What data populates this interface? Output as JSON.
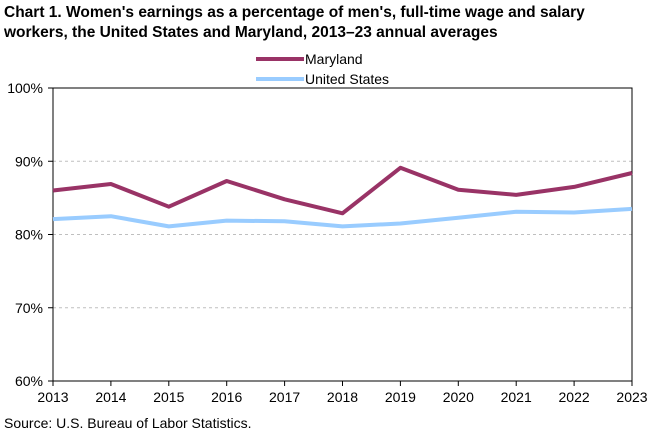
{
  "title_line1": "Chart 1. Women's earnings as a percentage of men's, full-time wage and salary",
  "title_line2": "workers, the United States and Maryland, 2013–23 annual averages",
  "source": "Source:  U.S. Bureau of Labor Statistics.",
  "colors": {
    "maryland": "#993366",
    "united_states": "#99ccff",
    "gridline": "#bfbfbf",
    "axis": "#000000"
  },
  "chart_data": {
    "type": "line",
    "title": "Chart 1. Women's earnings as a percentage of men's, full-time wage and salary workers, the United States and Maryland, 2013–23 annual averages",
    "xlabel": "",
    "ylabel": "",
    "x": [
      2013,
      2014,
      2015,
      2016,
      2017,
      2018,
      2019,
      2020,
      2021,
      2022,
      2023
    ],
    "x_tick_labels": [
      "2013",
      "2014",
      "2015",
      "2016",
      "2017",
      "2018",
      "2019",
      "2020",
      "2021",
      "2022",
      "2023"
    ],
    "ylim": [
      60,
      100
    ],
    "y_ticks": [
      60,
      70,
      80,
      90,
      100
    ],
    "y_tick_labels": [
      "60%",
      "70%",
      "80%",
      "90%",
      "100%"
    ],
    "grid": "horizontal-dashed",
    "legend_position": "top-center",
    "series": [
      {
        "name": "Maryland",
        "color": "#993366",
        "values": [
          86.0,
          86.9,
          83.8,
          87.3,
          84.8,
          82.9,
          89.1,
          86.1,
          85.4,
          86.5,
          88.4
        ]
      },
      {
        "name": "United States",
        "color": "#99ccff",
        "values": [
          82.1,
          82.5,
          81.1,
          81.9,
          81.8,
          81.1,
          81.5,
          82.3,
          83.1,
          83.0,
          83.5
        ]
      }
    ]
  }
}
